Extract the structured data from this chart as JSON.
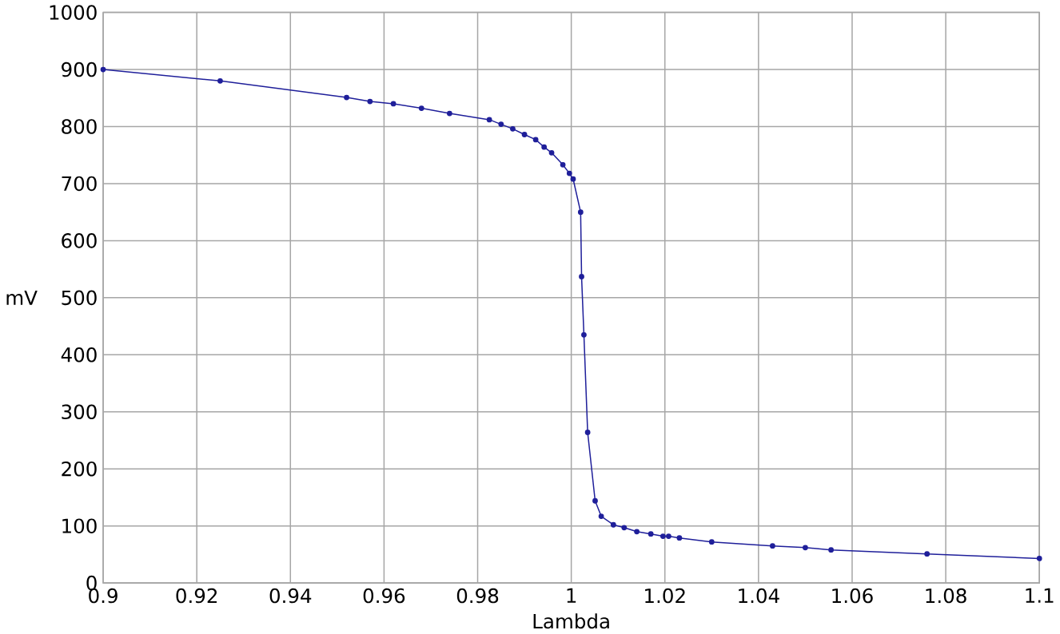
{
  "chart_data": {
    "type": "line",
    "xlabel": "Lambda",
    "ylabel": "mV",
    "color": "#1f1f9a",
    "marker": "circle",
    "grid": true,
    "x": [
      0.9,
      0.925,
      0.952,
      0.957,
      0.962,
      0.968,
      0.974,
      0.9825,
      0.985,
      0.9875,
      0.99,
      0.9924,
      0.9942,
      0.9958,
      0.9982,
      0.9996,
      1.0004,
      1.002,
      1.0022,
      1.0027,
      1.0035,
      1.0051,
      1.0064,
      1.009,
      1.0113,
      1.014,
      1.017,
      1.0196,
      1.0208,
      1.0231,
      1.03,
      1.043,
      1.05,
      1.0555,
      1.076,
      1.1
    ],
    "values": [
      900,
      880,
      851,
      844,
      840,
      832,
      823,
      812,
      804,
      796,
      786,
      777,
      764,
      754,
      733,
      718,
      708,
      650,
      537,
      435,
      264,
      144,
      117,
      102,
      97,
      90,
      86,
      82,
      82,
      79,
      72,
      65,
      62,
      58,
      51,
      43
    ],
    "xlim": [
      0.9,
      1.1
    ],
    "ylim": [
      0,
      1000
    ],
    "xticks": [
      0.9,
      0.92,
      0.94,
      0.96,
      0.98,
      1,
      1.02,
      1.04,
      1.06,
      1.08,
      1.1
    ],
    "yticks": [
      0,
      100,
      200,
      300,
      400,
      500,
      600,
      700,
      800,
      900,
      1000
    ]
  }
}
